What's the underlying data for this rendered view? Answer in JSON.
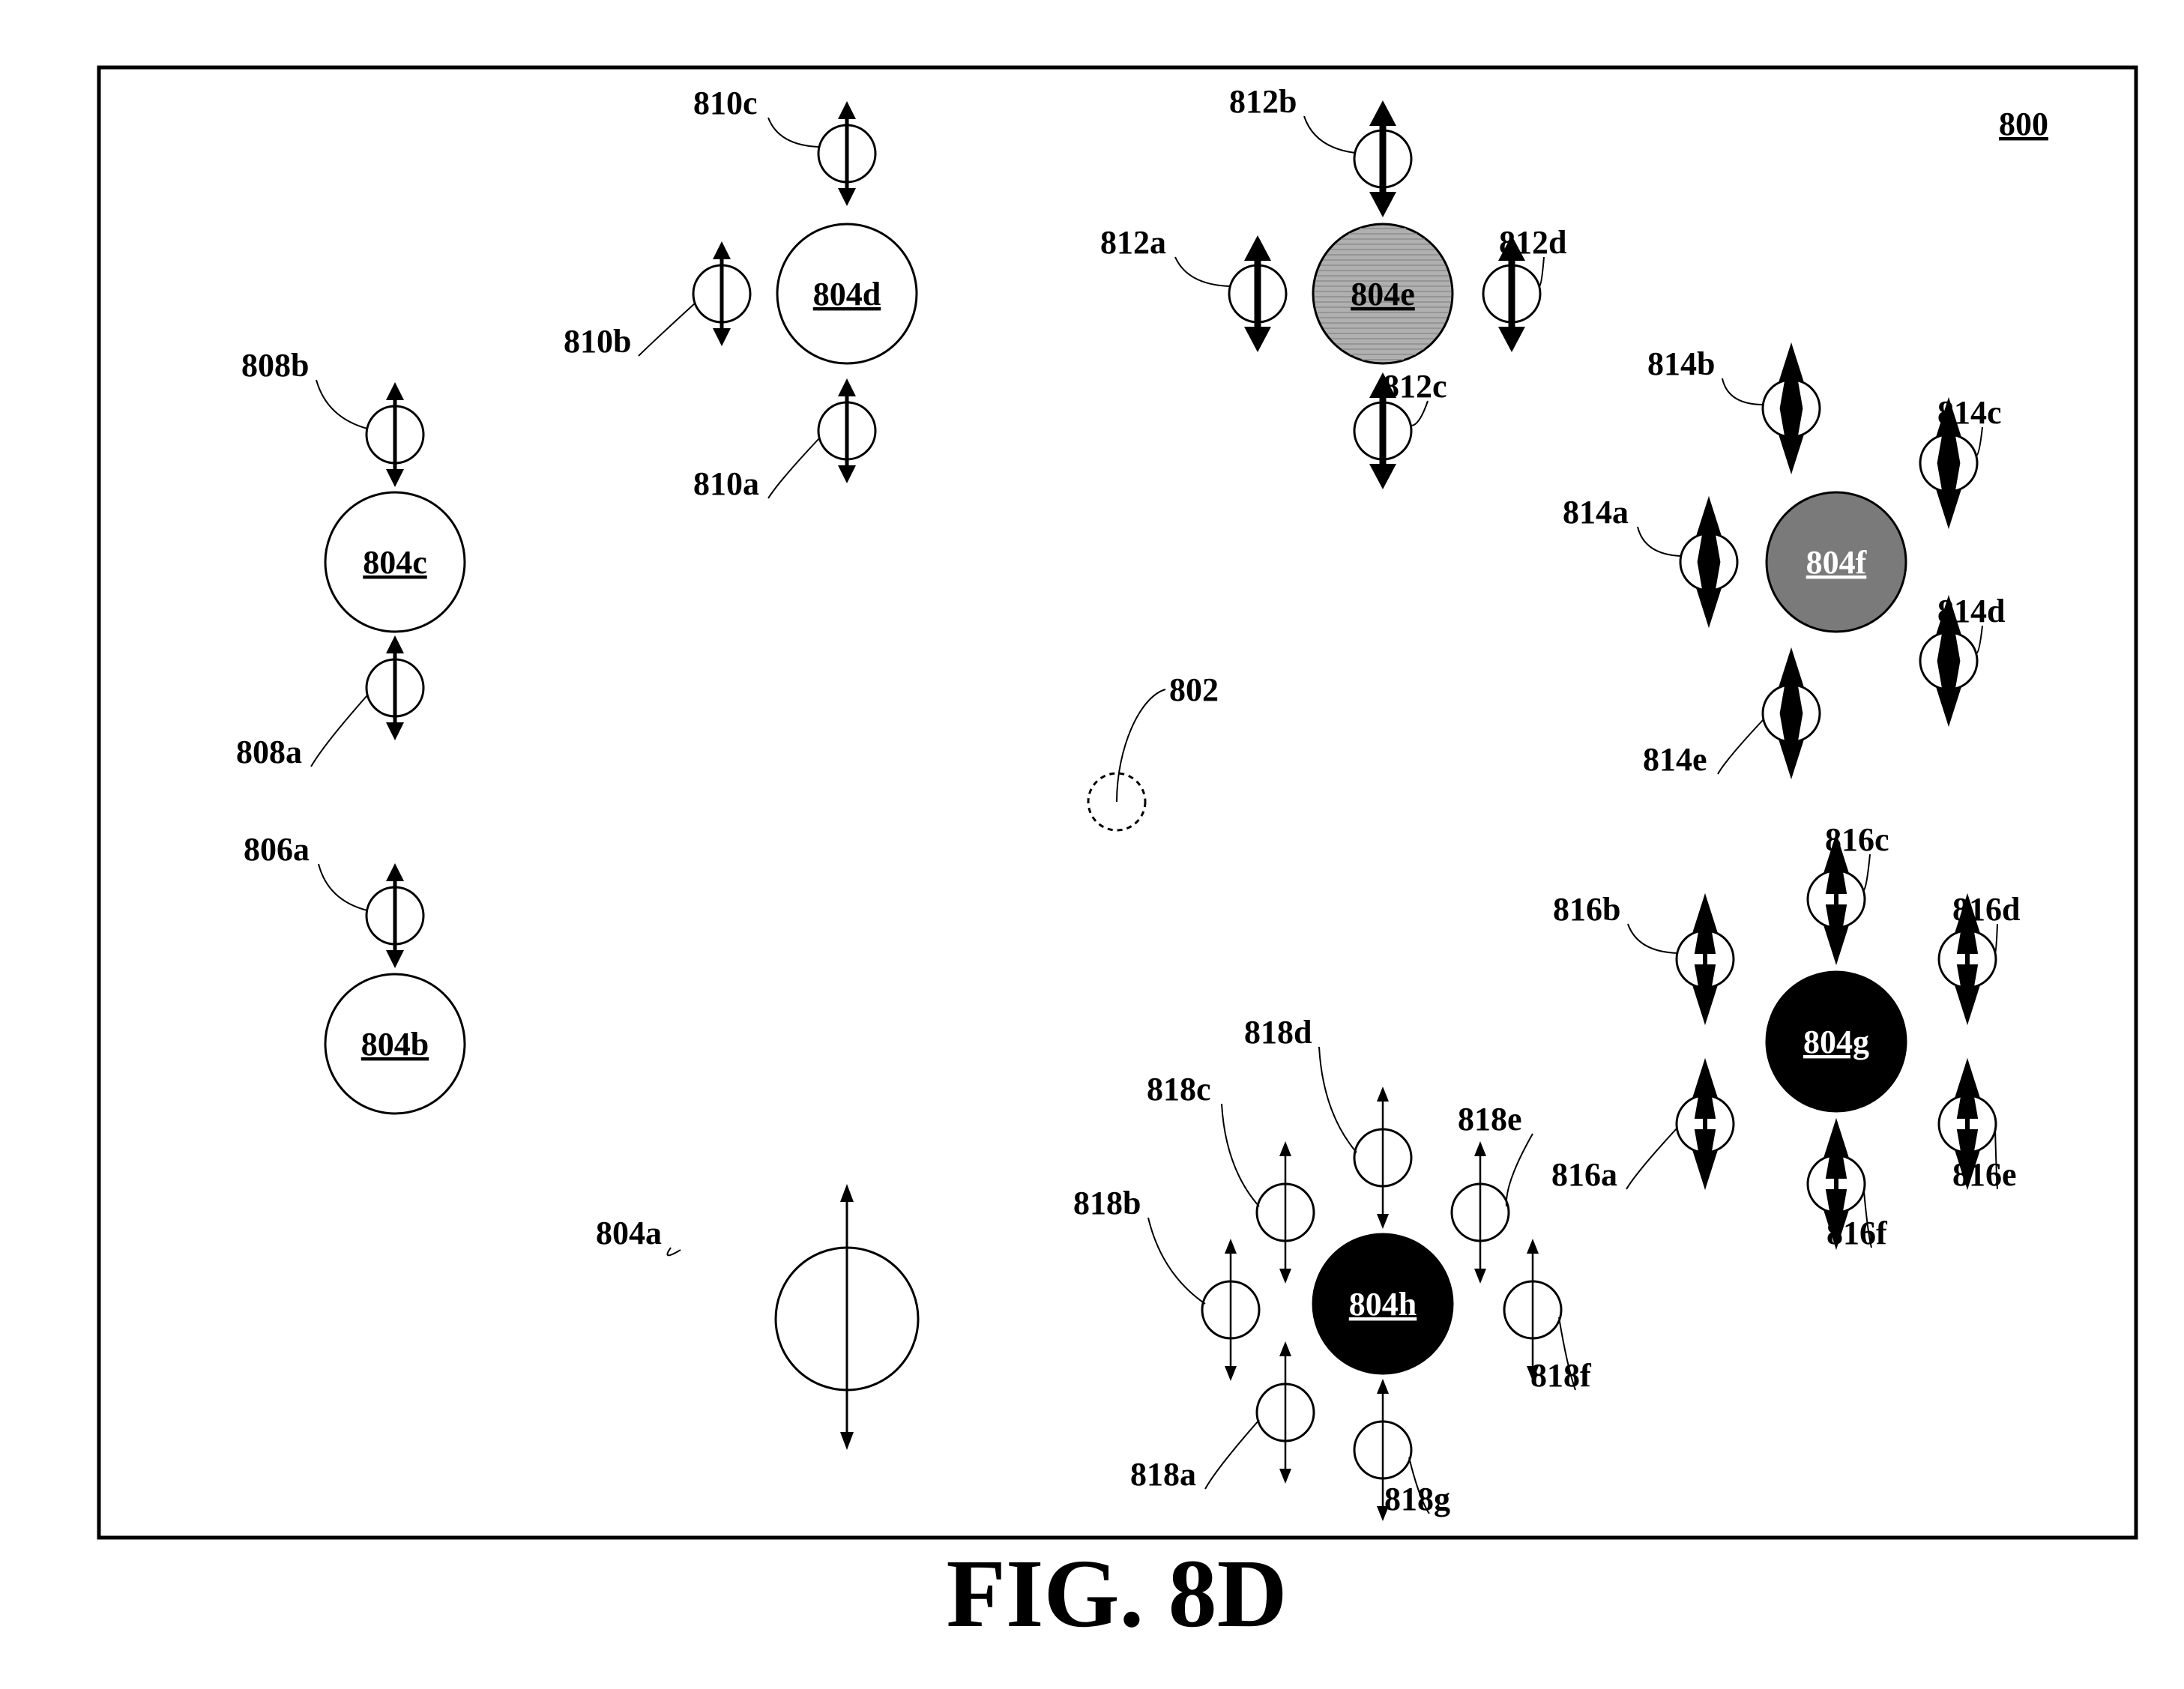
{
  "figure": {
    "title": "FIG. 8D",
    "ref": "800",
    "center_ref": "802"
  },
  "colors": {
    "white": "#ffffff",
    "light_gray": "#b0b0b0",
    "dark_gray": "#7a7a7a",
    "black": "#000000"
  },
  "nodes": [
    {
      "id": "804a",
      "label": "",
      "fill": "white"
    },
    {
      "id": "804b",
      "label": "804b",
      "fill": "white"
    },
    {
      "id": "804c",
      "label": "804c",
      "fill": "white"
    },
    {
      "id": "804d",
      "label": "804d",
      "fill": "white"
    },
    {
      "id": "804e",
      "label": "804e",
      "fill": "light_gray"
    },
    {
      "id": "804f",
      "label": "804f",
      "fill": "dark_gray"
    },
    {
      "id": "804g",
      "label": "804g",
      "fill": "black"
    },
    {
      "id": "804h",
      "label": "804h",
      "fill": "black"
    }
  ],
  "callouts": [
    "804a",
    "806a",
    "808a",
    "808b",
    "810a",
    "810b",
    "810c",
    "812a",
    "812b",
    "812c",
    "812d",
    "814a",
    "814b",
    "814c",
    "814d",
    "814e",
    "816a",
    "816b",
    "816c",
    "816d",
    "816e",
    "816f",
    "818a",
    "818b",
    "818c",
    "818d",
    "818e",
    "818f",
    "818g"
  ]
}
